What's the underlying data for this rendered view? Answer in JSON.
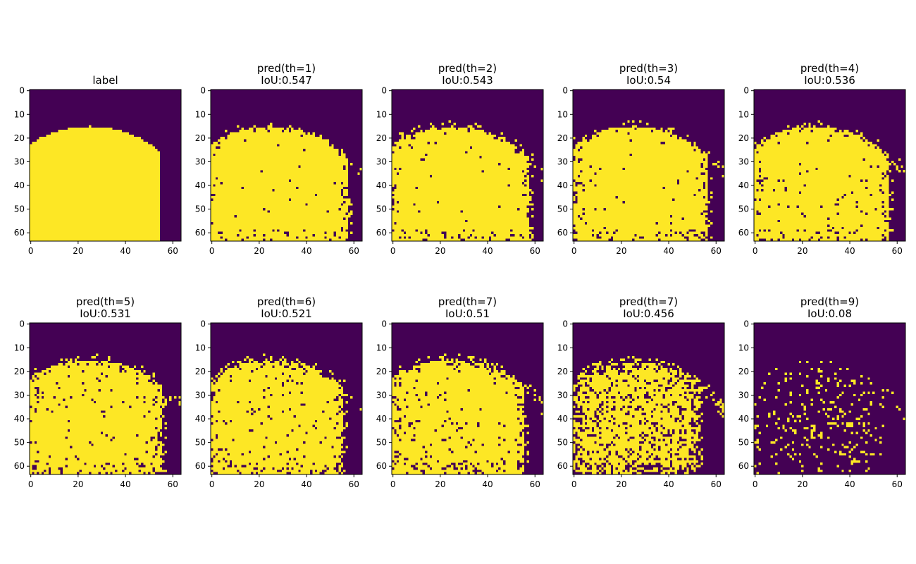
{
  "figure": {
    "colors": {
      "background": "#440154",
      "foreground": "#fde725",
      "axes": "#000000"
    }
  },
  "chart_data": [
    {
      "type": "heatmap",
      "title": "label",
      "xlim": [
        0,
        63
      ],
      "ylim": [
        63,
        0
      ],
      "xticks": [
        0,
        20,
        40,
        60
      ],
      "yticks": [
        0,
        10,
        20,
        30,
        40,
        50,
        60
      ],
      "mask": {
        "center": [
          25,
          62
        ],
        "radius": 47,
        "x_max": 54,
        "noise": 0,
        "edge_noise": 0
      }
    },
    {
      "type": "heatmap",
      "title": "pred(th=1)\n IoU:0.547",
      "title_lines": [
        "pred(th=1)",
        " IoU:0.547"
      ],
      "xlim": [
        0,
        63
      ],
      "ylim": [
        63,
        0
      ],
      "xticks": [
        0,
        20,
        40,
        60
      ],
      "yticks": [
        0,
        10,
        20,
        30,
        40,
        50,
        60
      ],
      "mask": {
        "center": [
          25,
          62
        ],
        "radius": 47,
        "x_max": 57,
        "noise": 0.01,
        "edge_noise": 0.12
      }
    },
    {
      "type": "heatmap",
      "title": "pred(th=2)\n IoU:0.543",
      "title_lines": [
        "pred(th=2)",
        " IoU:0.543"
      ],
      "xlim": [
        0,
        63
      ],
      "ylim": [
        63,
        0
      ],
      "xticks": [
        0,
        20,
        40,
        60
      ],
      "yticks": [
        0,
        10,
        20,
        30,
        40,
        50,
        60
      ],
      "mask": {
        "center": [
          25,
          62
        ],
        "radius": 47,
        "x_max": 57,
        "noise": 0.015,
        "edge_noise": 0.13
      }
    },
    {
      "type": "heatmap",
      "title": "pred(th=3)\n IoU:0.54",
      "title_lines": [
        "pred(th=3)",
        " IoU:0.54"
      ],
      "xlim": [
        0,
        63
      ],
      "ylim": [
        63,
        0
      ],
      "xticks": [
        0,
        20,
        40,
        60
      ],
      "yticks": [
        0,
        10,
        20,
        30,
        40,
        50,
        60
      ],
      "mask": {
        "center": [
          25,
          62
        ],
        "radius": 47,
        "x_max": 56,
        "noise": 0.02,
        "edge_noise": 0.14
      }
    },
    {
      "type": "heatmap",
      "title": "pred(th=4)\n IoU:0.536",
      "title_lines": [
        "pred(th=4)",
        " IoU:0.536"
      ],
      "xlim": [
        0,
        63
      ],
      "ylim": [
        63,
        0
      ],
      "xticks": [
        0,
        20,
        40,
        60
      ],
      "yticks": [
        0,
        10,
        20,
        30,
        40,
        50,
        60
      ],
      "mask": {
        "center": [
          25,
          62
        ],
        "radius": 47,
        "x_max": 56,
        "noise": 0.025,
        "edge_noise": 0.15
      }
    },
    {
      "type": "heatmap",
      "title": "pred(th=5)\n IoU:0.531",
      "title_lines": [
        "pred(th=5)",
        " IoU:0.531"
      ],
      "xlim": [
        0,
        63
      ],
      "ylim": [
        63,
        0
      ],
      "xticks": [
        0,
        20,
        40,
        60
      ],
      "yticks": [
        0,
        10,
        20,
        30,
        40,
        50,
        60
      ],
      "mask": {
        "center": [
          25,
          62
        ],
        "radius": 47,
        "x_max": 55,
        "noise": 0.03,
        "edge_noise": 0.16
      }
    },
    {
      "type": "heatmap",
      "title": "pred(th=6)\n IoU:0.521",
      "title_lines": [
        "pred(th=6)",
        " IoU:0.521"
      ],
      "xlim": [
        0,
        63
      ],
      "ylim": [
        63,
        0
      ],
      "xticks": [
        0,
        20,
        40,
        60
      ],
      "yticks": [
        0,
        10,
        20,
        30,
        40,
        50,
        60
      ],
      "mask": {
        "center": [
          25,
          62
        ],
        "radius": 47,
        "x_max": 55,
        "noise": 0.04,
        "edge_noise": 0.18
      }
    },
    {
      "type": "heatmap",
      "title": "pred(th=7)\n IoU:0.51",
      "title_lines": [
        "pred(th=7)",
        " IoU:0.51"
      ],
      "xlim": [
        0,
        63
      ],
      "ylim": [
        63,
        0
      ],
      "xticks": [
        0,
        20,
        40,
        60
      ],
      "yticks": [
        0,
        10,
        20,
        30,
        40,
        50,
        60
      ],
      "mask": {
        "center": [
          25,
          62
        ],
        "radius": 47,
        "x_max": 55,
        "noise": 0.06,
        "edge_noise": 0.2
      }
    },
    {
      "type": "heatmap",
      "title": "pred(th=7)\n IoU:0.456",
      "title_lines": [
        "pred(th=7)",
        " IoU:0.456"
      ],
      "xlim": [
        0,
        63
      ],
      "ylim": [
        63,
        0
      ],
      "xticks": [
        0,
        20,
        40,
        60
      ],
      "yticks": [
        0,
        10,
        20,
        30,
        40,
        50,
        60
      ],
      "mask": {
        "center": [
          25,
          62
        ],
        "radius": 46,
        "x_max": 52,
        "noise": 0.2,
        "edge_noise": 0.35
      }
    },
    {
      "type": "heatmap",
      "title": "pred(th=9)\n IoU:0.08",
      "title_lines": [
        "pred(th=9)",
        " IoU:0.08"
      ],
      "xlim": [
        0,
        63
      ],
      "ylim": [
        63,
        0
      ],
      "xticks": [
        0,
        20,
        40,
        60
      ],
      "yticks": [
        0,
        10,
        20,
        30,
        40,
        50,
        60
      ],
      "mask": {
        "center": [
          25,
          62
        ],
        "radius": 45,
        "x_max": 52,
        "noise": 0.88,
        "edge_noise": 0.5
      }
    }
  ]
}
